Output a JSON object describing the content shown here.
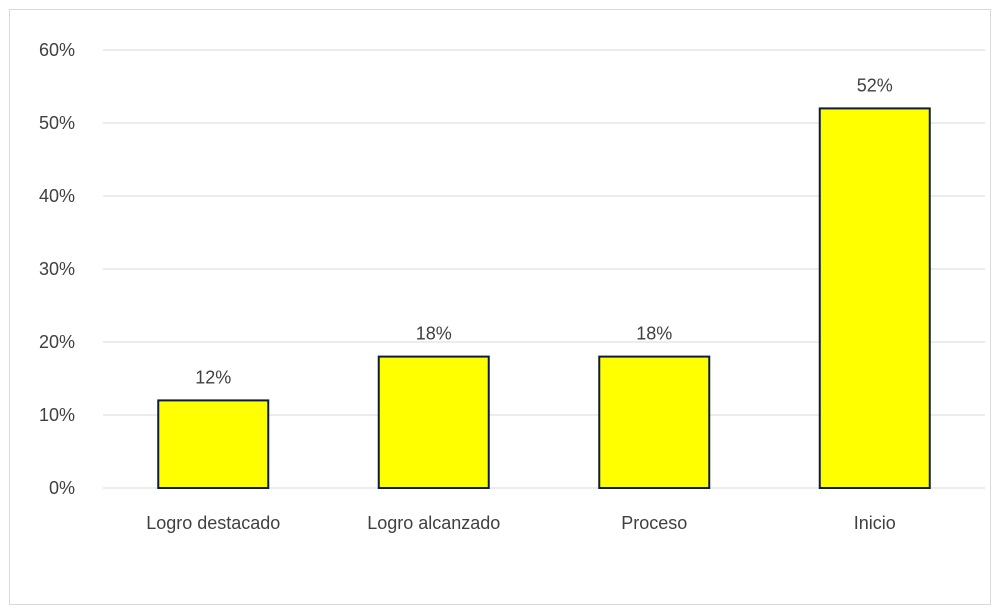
{
  "chart_data": {
    "type": "bar",
    "title": "",
    "xlabel": "",
    "ylabel": "",
    "categories": [
      "Logro destacado",
      "Logro alcanzado",
      "Proceso",
      "Inicio"
    ],
    "values": [
      12,
      18,
      18,
      52
    ],
    "data_labels": [
      "12%",
      "18%",
      "18%",
      "52%"
    ],
    "ylim": [
      0,
      60
    ],
    "yticks": [
      0,
      10,
      20,
      30,
      40,
      50,
      60
    ],
    "ytick_labels": [
      "0%",
      "10%",
      "20%",
      "30%",
      "40%",
      "50%",
      "60%"
    ],
    "grid": true,
    "legend": "none",
    "bar_color": "#ffff00",
    "bar_edge_color": "#0d1b3e",
    "grid_color": "#d9d9d9"
  }
}
